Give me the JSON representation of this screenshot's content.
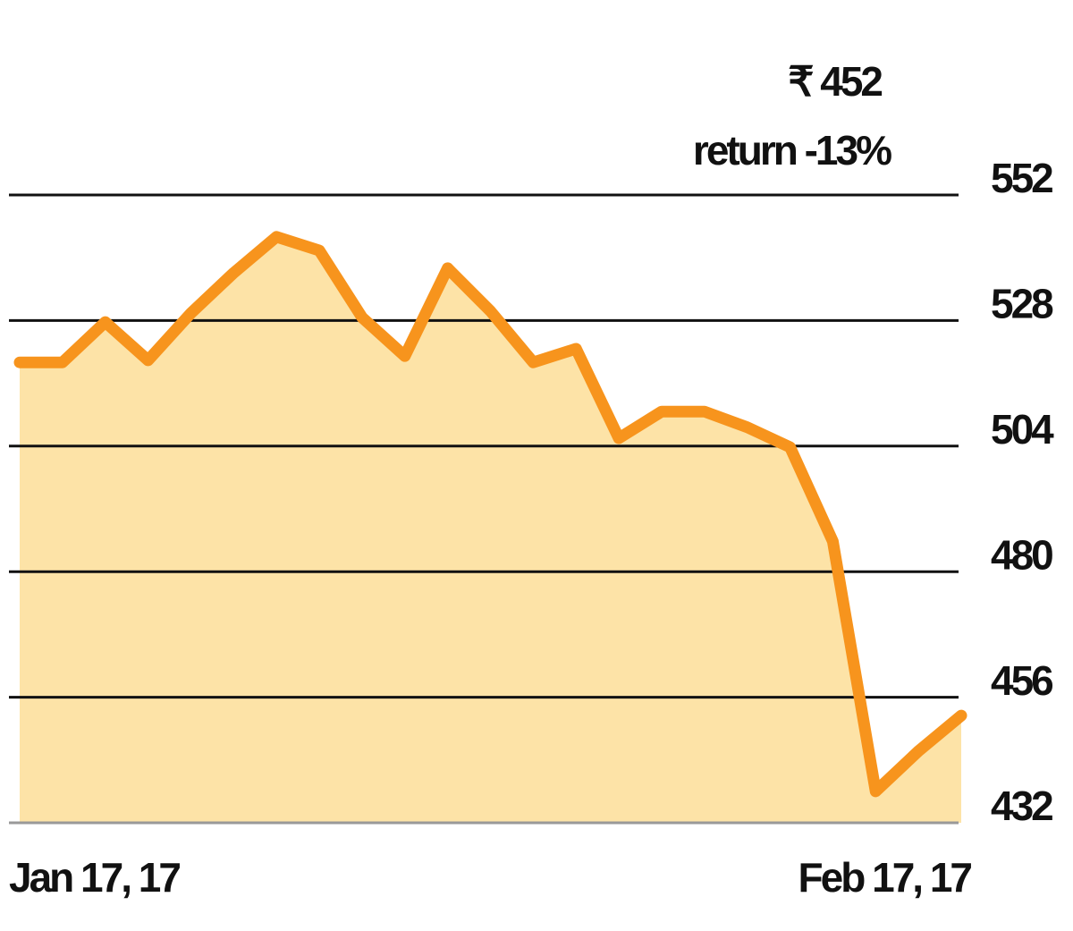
{
  "chart_data": {
    "type": "area",
    "annotations": [
      "₹ 452",
      "return -13%"
    ],
    "categories": [
      "Jan 17, 17",
      null,
      null,
      null,
      null,
      null,
      null,
      null,
      null,
      null,
      null,
      null,
      null,
      null,
      null,
      null,
      null,
      null,
      null,
      null,
      null,
      null,
      "Feb 17, 17"
    ],
    "values": [
      520,
      520,
      527.7,
      520.4,
      529.4,
      537.1,
      544,
      541.4,
      528.6,
      521.2,
      538,
      529.8,
      520,
      522.6,
      505.5,
      510.6,
      510.6,
      507.6,
      503.8,
      485.8,
      438,
      445.7,
      452.5
    ],
    "color": "#f7941d",
    "fill": "#fde3a7",
    "ylim": [
      432,
      552
    ],
    "yticks": [
      552,
      528,
      504,
      480,
      456,
      432
    ],
    "grid": true
  }
}
